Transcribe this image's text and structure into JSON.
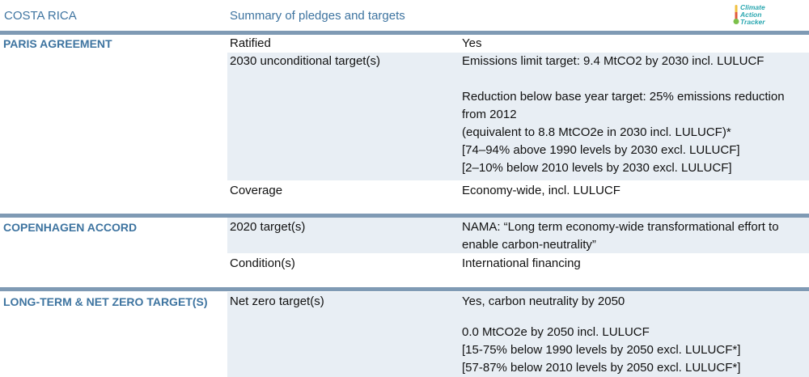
{
  "header": {
    "country": "COSTA RICA",
    "summary": "Summary of pledges and targets",
    "logo_lines": [
      "Climate",
      "Action",
      "Tracker"
    ]
  },
  "colors": {
    "accent": "#3e74a0",
    "bar": "#7f9ab4",
    "shade": "#e8eef4",
    "logo": "#2aa7b0"
  },
  "sections": {
    "paris": {
      "title": "PARIS AGREEMENT",
      "rows": [
        {
          "label": "Ratified",
          "value": [
            "Yes"
          ]
        },
        {
          "label": "2030 unconditional target(s)",
          "value": [
            "Emissions limit target: 9.4 MtCO2 by 2030 incl. LULUCF",
            "",
            "Reduction below base year target: 25% emissions reduction",
            "from 2012",
            "(equivalent to 8.8 MtCO2e in 2030 incl. LULUCF)*",
            "[74–94% above 1990 levels by 2030 excl. LULUCF]",
            "[2–10% below 2010 levels by 2030 excl. LULUCF]"
          ]
        },
        {
          "label": "Coverage",
          "value": [
            "Economy-wide, incl. LULUCF"
          ]
        }
      ]
    },
    "copenhagen": {
      "title": "COPENHAGEN ACCORD",
      "rows": [
        {
          "label": "2020 target(s)",
          "value": [
            "NAMA: “Long term economy-wide transformational effort to",
            "enable carbon-neutrality”"
          ]
        },
        {
          "label": "Condition(s)",
          "value": [
            "International financing"
          ]
        }
      ]
    },
    "longterm": {
      "title": "LONG-TERM & NET ZERO TARGET(S)",
      "rows": [
        {
          "label": "Net zero target(s)",
          "value": [
            "Yes, carbon neutrality by 2050",
            "",
            "0.0 MtCO2e by 2050 incl. LULUCF",
            "[15-75% below 1990 levels by 2050 excl. LULUCF*]",
            "[57-87% below 2010 levels by 2050 excl. LULUCF*]"
          ]
        }
      ]
    }
  }
}
